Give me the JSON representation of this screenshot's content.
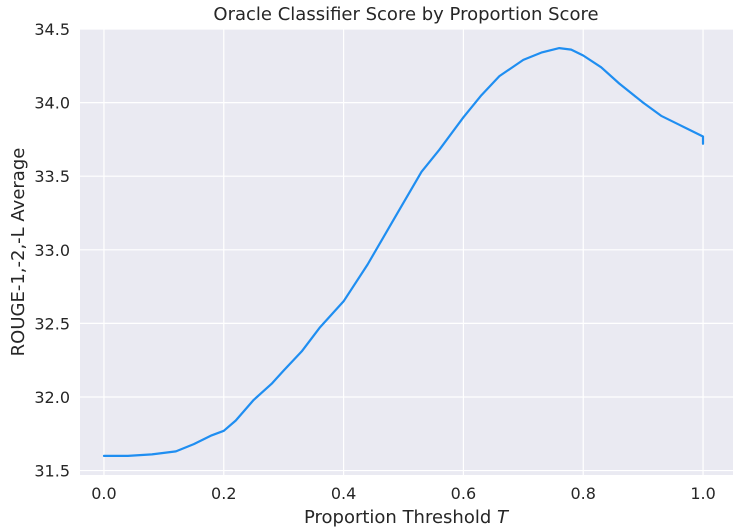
{
  "chart_data": {
    "type": "line",
    "title": "Oracle Classifier Score by Proportion Score",
    "xlabel": "Proportion Threshold",
    "xlabel_italic": "T",
    "ylabel": "ROUGE-1,-2,-L Average",
    "xlim": [
      -0.04,
      1.05
    ],
    "ylim": [
      31.47,
      34.5
    ],
    "xticks": [
      0.0,
      0.2,
      0.4,
      0.6,
      0.8,
      1.0
    ],
    "xtick_labels": [
      "0.0",
      "0.2",
      "0.4",
      "0.6",
      "0.8",
      "1.0"
    ],
    "yticks": [
      31.5,
      32.0,
      32.5,
      33.0,
      33.5,
      34.0,
      34.5
    ],
    "ytick_labels": [
      "31.5",
      "32.0",
      "32.5",
      "33.0",
      "33.5",
      "34.0",
      "34.5"
    ],
    "grid": true,
    "background_color": "#eaeaf2",
    "line_color": "#1f8ef1",
    "series": [
      {
        "name": "",
        "x": [
          0.0,
          0.04,
          0.08,
          0.12,
          0.15,
          0.18,
          0.2,
          0.22,
          0.25,
          0.28,
          0.3,
          0.33,
          0.36,
          0.4,
          0.44,
          0.48,
          0.5,
          0.53,
          0.56,
          0.6,
          0.63,
          0.66,
          0.7,
          0.73,
          0.76,
          0.78,
          0.8,
          0.83,
          0.86,
          0.9,
          0.93,
          0.96,
          1.0,
          1.0
        ],
        "y": [
          31.6,
          31.6,
          31.61,
          31.63,
          31.68,
          31.74,
          31.77,
          31.84,
          31.98,
          32.09,
          32.18,
          32.31,
          32.47,
          32.65,
          32.9,
          33.18,
          33.32,
          33.53,
          33.68,
          33.9,
          34.05,
          34.18,
          34.29,
          34.34,
          34.37,
          34.36,
          34.32,
          34.24,
          34.13,
          34.0,
          33.91,
          33.85,
          33.77,
          33.72
        ]
      }
    ]
  }
}
